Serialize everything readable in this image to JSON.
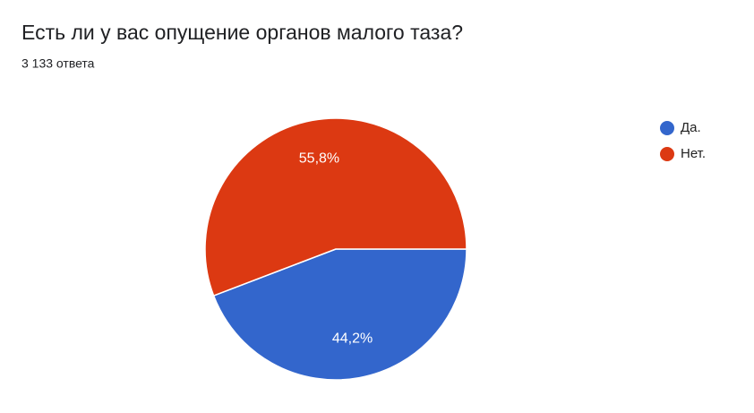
{
  "chart_data": {
    "type": "pie",
    "title": "Есть ли у вас опущение органов малого таза?",
    "subtitle": "3 133 ответа",
    "categories": [
      "Да.",
      "Нет."
    ],
    "values": [
      44.2,
      55.8
    ],
    "value_labels": [
      "44,2%",
      "55,8%"
    ],
    "colors": [
      "#3366cc",
      "#dc3912"
    ],
    "legend": "right"
  }
}
